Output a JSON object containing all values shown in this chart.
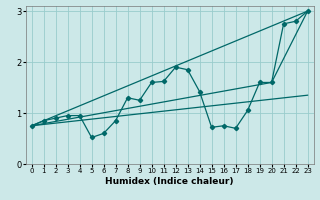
{
  "xlabel": "Humidex (Indice chaleur)",
  "bg_color": "#cce8e8",
  "line_color": "#006868",
  "grid_color": "#99cccc",
  "xlim": [
    -0.5,
    23.5
  ],
  "ylim": [
    0,
    3.1
  ],
  "xticks": [
    0,
    1,
    2,
    3,
    4,
    5,
    6,
    7,
    8,
    9,
    10,
    11,
    12,
    13,
    14,
    15,
    16,
    17,
    18,
    19,
    20,
    21,
    22,
    23
  ],
  "yticks": [
    0,
    1,
    2,
    3
  ],
  "line1_x": [
    0,
    1,
    2,
    3,
    4,
    5,
    6,
    7,
    8,
    9,
    10,
    11,
    12,
    13,
    14,
    15,
    16,
    17,
    18,
    19,
    20,
    21,
    22,
    23
  ],
  "line1_y": [
    0.75,
    0.85,
    0.9,
    0.95,
    0.95,
    0.52,
    0.6,
    0.85,
    1.3,
    1.25,
    1.6,
    1.62,
    1.9,
    1.85,
    1.42,
    0.72,
    0.75,
    0.7,
    1.05,
    1.6,
    1.6,
    2.75,
    2.8,
    3.0
  ],
  "line2_x": [
    0,
    23
  ],
  "line2_y": [
    0.75,
    3.0
  ],
  "line3_x": [
    0,
    20,
    23
  ],
  "line3_y": [
    0.75,
    1.6,
    3.0
  ],
  "line4_x": [
    0,
    23
  ],
  "line4_y": [
    0.75,
    1.35
  ]
}
